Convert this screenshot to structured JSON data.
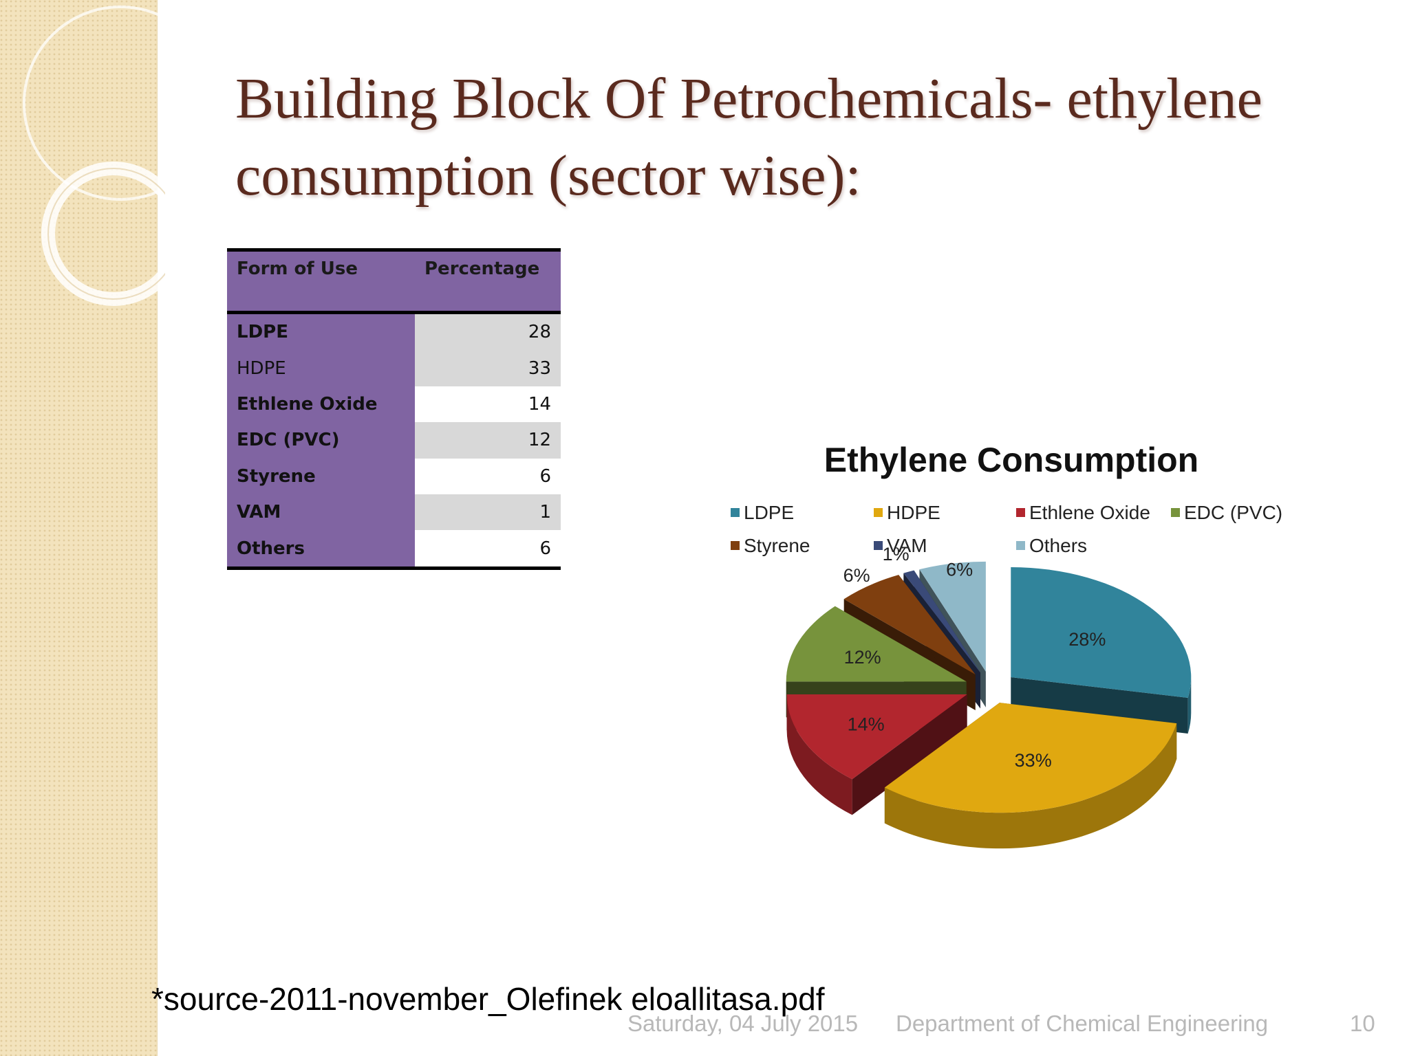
{
  "slide": {
    "title_line1": "Building Block Of Petrochemicals- ethylene",
    "title_line2": "consumption (sector wise):",
    "source_note": "*source-2011-november_Olefinek eloallitasa.pdf",
    "footer_date": "Saturday, 04 July 2015",
    "footer_department": "Department of Chemical Engineering",
    "page_number": "10"
  },
  "table": {
    "headers": [
      "Form of Use",
      "Percentage"
    ],
    "rows": [
      {
        "use": "LDPE",
        "value": "28"
      },
      {
        "use": "HDPE",
        "value": "33"
      },
      {
        "use": "Ethlene Oxide",
        "value": "14"
      },
      {
        "use": "EDC (PVC)",
        "value": "12"
      },
      {
        "use": "Styrene",
        "value": "6"
      },
      {
        "use": "VAM",
        "value": "1"
      },
      {
        "use": "Others",
        "value": "6"
      }
    ]
  },
  "chart_data": {
    "type": "pie",
    "title": "Ethylene Consumption",
    "categories": [
      "LDPE",
      "HDPE",
      "Ethlene Oxide",
      "EDC (PVC)",
      "Styrene",
      "VAM",
      "Others"
    ],
    "values": [
      28,
      33,
      14,
      12,
      6,
      1,
      6
    ],
    "labels": [
      "28%",
      "33%",
      "14%",
      "12%",
      "6%",
      "1%",
      "6%"
    ],
    "colors": [
      "#31849b",
      "#e0a810",
      "#b2262e",
      "#77933c",
      "#7f3f0f",
      "#3a4a78",
      "#8fb8c8"
    ],
    "legend": "top",
    "style": "3d exploded"
  }
}
